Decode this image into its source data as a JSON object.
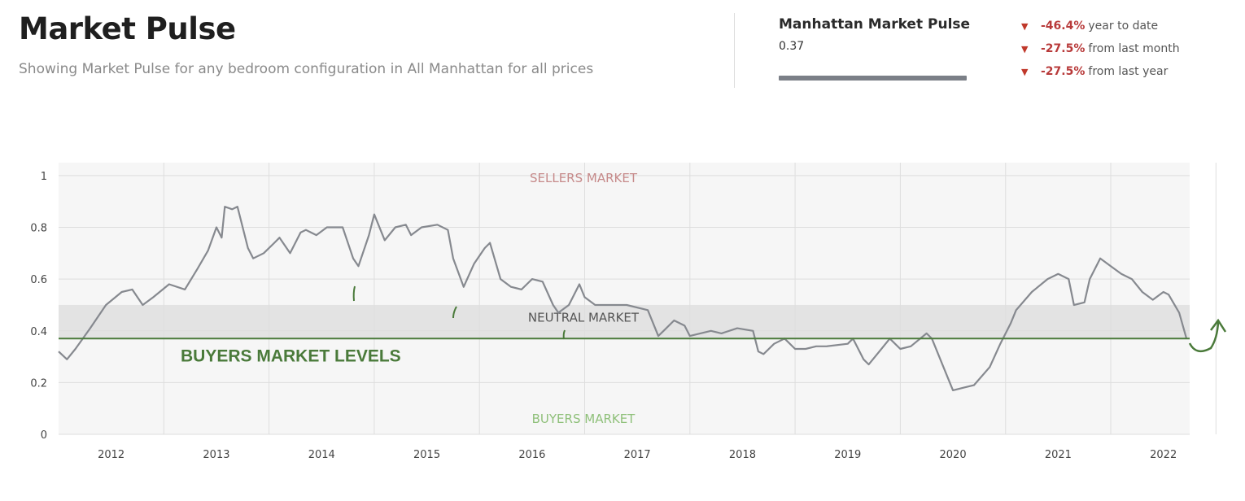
{
  "header": {
    "title": "Market Pulse",
    "subtitle": "Showing Market Pulse for any bedroom configuration in All Manhattan for all prices"
  },
  "summary": {
    "title": "Manhattan Market Pulse",
    "value": "0.37",
    "progress": 0.37,
    "stats": [
      {
        "arrow": "▼",
        "pct": "-46.4%",
        "label": "year to date"
      },
      {
        "arrow": "▼",
        "pct": "-27.5%",
        "label": "from last month"
      },
      {
        "arrow": "▼",
        "pct": "-27.5%",
        "label": "from last year"
      }
    ]
  },
  "colors": {
    "series": "#86898f",
    "annotation": "#4a7a3a",
    "sellers_label": "#c68a8a",
    "neutral_label": "#555555",
    "buyers_label": "#8fc07a",
    "negative": "#b83a3a"
  },
  "chart_data": {
    "type": "line",
    "title": "",
    "xlabel": "",
    "ylabel": "",
    "xlim": [
      2011.5,
      2022.25
    ],
    "ylim": [
      0,
      1.05
    ],
    "yticks": [
      "0",
      "0.2",
      "0.4",
      "0.6",
      "0.8",
      "1"
    ],
    "ytick_values": [
      0,
      0.2,
      0.4,
      0.6,
      0.8,
      1
    ],
    "xticks": [
      "2012",
      "2013",
      "2014",
      "2015",
      "2016",
      "2017",
      "2018",
      "2019",
      "2020",
      "2021",
      "2022"
    ],
    "xtick_values": [
      2012,
      2013,
      2014,
      2015,
      2016,
      2017,
      2018,
      2019,
      2020,
      2021,
      2022
    ],
    "neutral_band": [
      0.37,
      0.5
    ],
    "zone_labels": {
      "sellers": "SELLERS MARKET",
      "neutral": "NEUTRAL MARKET",
      "buyers": "BUYERS MARKET"
    },
    "annotation": {
      "text": "BUYERS MARKET LEVELS",
      "level": 0.37
    },
    "series": [
      {
        "name": "Manhattan Market Pulse",
        "x": [
          2011.5,
          2011.58,
          2011.66,
          2011.8,
          2011.95,
          2012.1,
          2012.2,
          2012.3,
          2012.4,
          2012.55,
          2012.7,
          2012.82,
          2012.92,
          2013.0,
          2013.05,
          2013.08,
          2013.15,
          2013.2,
          2013.3,
          2013.35,
          2013.45,
          2013.55,
          2013.6,
          2013.7,
          2013.8,
          2013.85,
          2013.95,
          2014.05,
          2014.15,
          2014.2,
          2014.3,
          2014.35,
          2014.45,
          2014.5,
          2014.6,
          2014.7,
          2014.8,
          2014.85,
          2014.95,
          2015.1,
          2015.2,
          2015.25,
          2015.35,
          2015.45,
          2015.55,
          2015.6,
          2015.7,
          2015.8,
          2015.9,
          2016.0,
          2016.1,
          2016.2,
          2016.25,
          2016.35,
          2016.45,
          2016.5,
          2016.6,
          2016.7,
          2016.9,
          2017.1,
          2017.2,
          2017.25,
          2017.35,
          2017.45,
          2017.5,
          2017.6,
          2017.7,
          2017.8,
          2017.95,
          2018.1,
          2018.15,
          2018.2,
          2018.3,
          2018.4,
          2018.5,
          2018.6,
          2018.7,
          2018.8,
          2019.0,
          2019.05,
          2019.15,
          2019.2,
          2019.3,
          2019.4,
          2019.5,
          2019.6,
          2019.75,
          2019.8,
          2019.9,
          2020.0,
          2020.1,
          2020.2,
          2020.35,
          2020.45,
          2020.55,
          2020.6,
          2020.75,
          2020.9,
          2021.0,
          2021.1,
          2021.15,
          2021.25,
          2021.3,
          2021.4,
          2021.5,
          2021.6,
          2021.7,
          2021.8,
          2021.9,
          2022.0,
          2022.05,
          2022.15,
          2022.22
        ],
        "values": [
          0.32,
          0.29,
          0.33,
          0.41,
          0.5,
          0.55,
          0.56,
          0.5,
          0.53,
          0.58,
          0.56,
          0.64,
          0.71,
          0.8,
          0.76,
          0.88,
          0.87,
          0.88,
          0.72,
          0.68,
          0.7,
          0.74,
          0.76,
          0.7,
          0.78,
          0.79,
          0.77,
          0.8,
          0.8,
          0.8,
          0.68,
          0.65,
          0.77,
          0.85,
          0.75,
          0.8,
          0.81,
          0.77,
          0.8,
          0.81,
          0.79,
          0.68,
          0.57,
          0.66,
          0.72,
          0.74,
          0.6,
          0.57,
          0.56,
          0.6,
          0.59,
          0.5,
          0.47,
          0.5,
          0.58,
          0.53,
          0.5,
          0.5,
          0.5,
          0.48,
          0.38,
          0.4,
          0.44,
          0.42,
          0.38,
          0.39,
          0.4,
          0.39,
          0.41,
          0.4,
          0.32,
          0.31,
          0.35,
          0.37,
          0.33,
          0.33,
          0.34,
          0.34,
          0.35,
          0.37,
          0.29,
          0.27,
          0.32,
          0.37,
          0.33,
          0.34,
          0.39,
          0.37,
          0.27,
          0.17,
          0.18,
          0.19,
          0.26,
          0.35,
          0.43,
          0.48,
          0.55,
          0.6,
          0.62,
          0.6,
          0.5,
          0.51,
          0.6,
          0.68,
          0.65,
          0.62,
          0.6,
          0.55,
          0.52,
          0.55,
          0.54,
          0.47,
          0.37
        ]
      }
    ]
  }
}
